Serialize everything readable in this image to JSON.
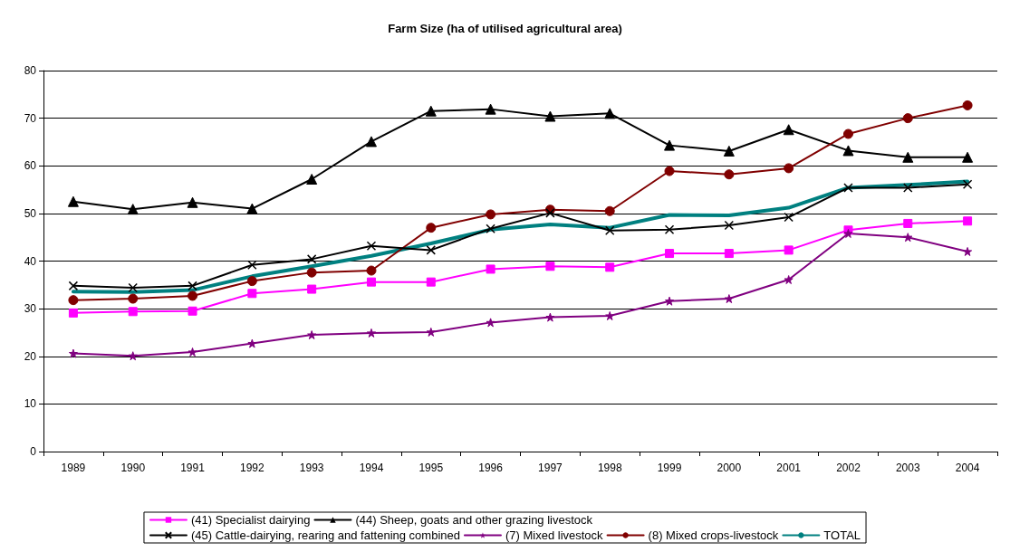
{
  "chart_data": {
    "type": "line",
    "title": "Farm Size (ha of utilised agricultural area)",
    "categories": [
      "1989",
      "1990",
      "1991",
      "1992",
      "1993",
      "1994",
      "1995",
      "1996",
      "1997",
      "1998",
      "1999",
      "2000",
      "2001",
      "2002",
      "2003",
      "2004"
    ],
    "ylim": [
      0,
      80
    ],
    "yticks": [
      0,
      10,
      20,
      30,
      40,
      50,
      60,
      70,
      80
    ],
    "grid": "y",
    "legend": "bottom",
    "series": [
      {
        "name": "(41) Specialist dairying",
        "color": "#ff00ff",
        "marker": "square",
        "values": [
          29.1,
          29.4,
          29.5,
          33.2,
          34.1,
          35.6,
          35.6,
          38.3,
          38.9,
          38.7,
          41.6,
          41.6,
          42.3,
          46.5,
          47.9,
          48.4
        ]
      },
      {
        "name": "(44) Sheep, goats and other grazing livestock",
        "color": "#000000",
        "marker": "triangle",
        "values": [
          52.5,
          50.9,
          52.3,
          51.0,
          57.2,
          65.1,
          71.5,
          71.9,
          70.4,
          71.0,
          64.3,
          63.1,
          67.6,
          63.2,
          61.8,
          61.8
        ]
      },
      {
        "name": "(45) Cattle-dairying, rearing and fattening combined",
        "color": "#000000",
        "marker": "cross",
        "values": [
          34.8,
          34.4,
          34.8,
          39.2,
          40.4,
          43.2,
          42.3,
          46.8,
          50.1,
          46.4,
          46.6,
          47.5,
          49.2,
          55.4,
          55.4,
          56.1
        ]
      },
      {
        "name": "(7) Mixed livestock",
        "color": "#800080",
        "marker": "star",
        "values": [
          20.6,
          20.1,
          20.9,
          22.7,
          24.5,
          24.9,
          25.1,
          27.1,
          28.2,
          28.5,
          31.6,
          32.1,
          36.1,
          45.8,
          45.0,
          42.0
        ]
      },
      {
        "name": "(8) Mixed crops-livestock",
        "color": "#800000",
        "marker": "circle",
        "values": [
          31.8,
          32.1,
          32.7,
          35.8,
          37.6,
          38.0,
          47.0,
          49.8,
          50.8,
          50.5,
          58.9,
          58.2,
          59.5,
          66.7,
          70.0,
          72.7
        ]
      },
      {
        "name": "TOTAL",
        "color": "#008080",
        "marker": "none",
        "values": [
          33.6,
          33.5,
          33.9,
          36.8,
          38.9,
          41.1,
          43.7,
          46.6,
          47.7,
          47.0,
          49.7,
          49.6,
          51.2,
          55.4,
          56.0,
          56.7
        ]
      }
    ]
  }
}
